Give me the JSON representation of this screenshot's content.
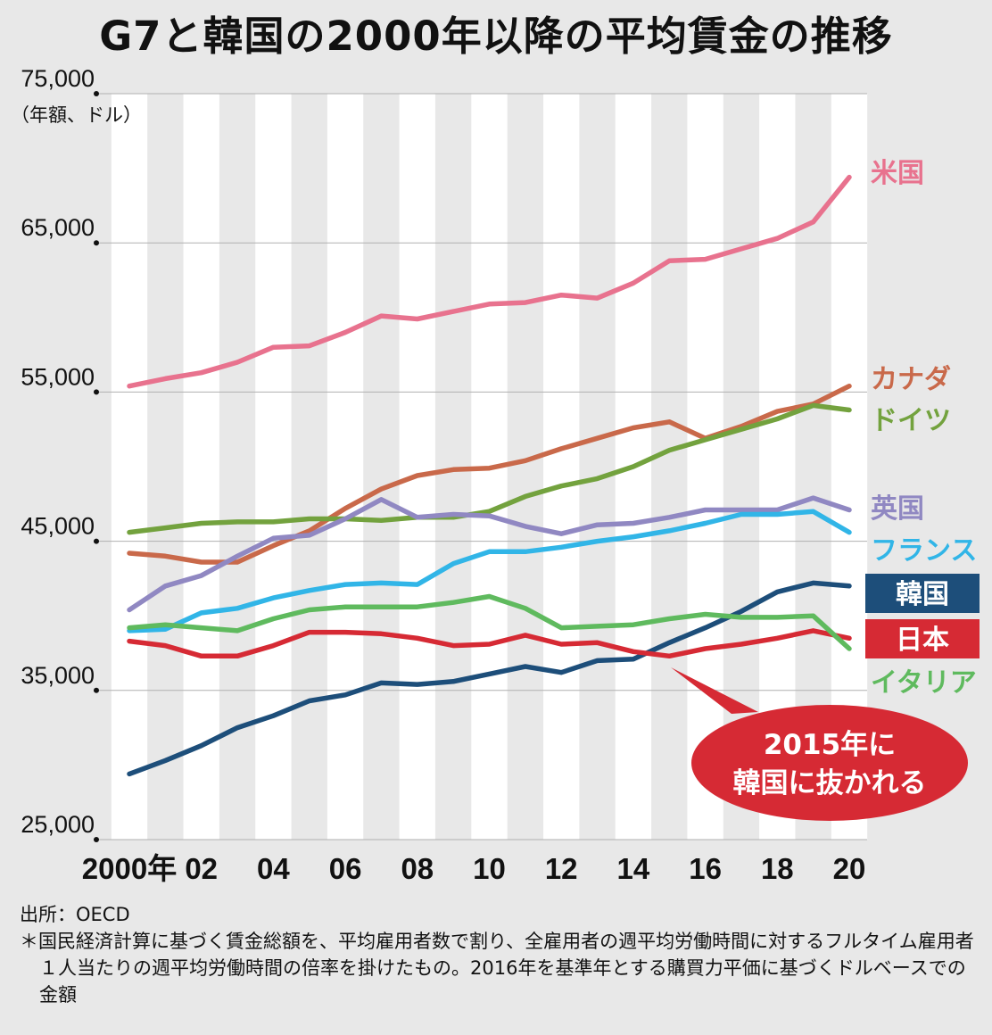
{
  "title": "G7と韓国の2000年以降の平均賃金の推移",
  "chart_data": {
    "type": "line",
    "unit_label": "（年額、ドル）",
    "ylim": [
      25000,
      75000
    ],
    "yticks": [
      25000,
      35000,
      45000,
      55000,
      65000,
      75000
    ],
    "ytick_labels": [
      "25,000",
      "35,000",
      "45,000",
      "55,000",
      "65,000",
      "75,000"
    ],
    "x": [
      2000,
      2001,
      2002,
      2003,
      2004,
      2005,
      2006,
      2007,
      2008,
      2009,
      2010,
      2011,
      2012,
      2013,
      2014,
      2015,
      2016,
      2017,
      2018,
      2019,
      2020
    ],
    "xtick_values": [
      2000,
      2002,
      2004,
      2006,
      2008,
      2010,
      2012,
      2014,
      2016,
      2018,
      2020
    ],
    "xtick_labels": [
      "2000年",
      "02",
      "04",
      "06",
      "08",
      "10",
      "12",
      "14",
      "16",
      "18",
      "20"
    ],
    "grid": "vertical stripes",
    "series": [
      {
        "name": "米国",
        "color": "#e8728e",
        "label_style": "text",
        "values": [
          55400,
          55900,
          56300,
          57000,
          58000,
          58100,
          59000,
          60100,
          59900,
          60400,
          60900,
          61000,
          61500,
          61300,
          62300,
          63800,
          63900,
          64600,
          65300,
          66400,
          69400
        ]
      },
      {
        "name": "カナダ",
        "color": "#c9694a",
        "label_style": "text",
        "values": [
          44200,
          44000,
          43600,
          43600,
          44700,
          45700,
          47200,
          48500,
          49400,
          49800,
          49900,
          50400,
          51200,
          51900,
          52600,
          53000,
          51900,
          52700,
          53700,
          54200,
          55400
        ]
      },
      {
        "name": "ドイツ",
        "color": "#73a23e",
        "label_style": "text",
        "values": [
          45600,
          45900,
          46200,
          46300,
          46300,
          46500,
          46500,
          46400,
          46600,
          46600,
          47000,
          48000,
          48700,
          49200,
          50000,
          51100,
          51800,
          52500,
          53200,
          54100,
          53800
        ]
      },
      {
        "name": "英国",
        "color": "#9088c2",
        "label_style": "text",
        "values": [
          40400,
          42000,
          42700,
          44000,
          45200,
          45400,
          46500,
          47800,
          46600,
          46800,
          46700,
          46000,
          45500,
          46100,
          46200,
          46600,
          47100,
          47100,
          47100,
          47900,
          47100
        ]
      },
      {
        "name": "フランス",
        "color": "#31b5e7",
        "label_style": "text",
        "values": [
          39000,
          39100,
          40200,
          40500,
          41200,
          41700,
          42100,
          42200,
          42100,
          43500,
          44300,
          44300,
          44600,
          45000,
          45300,
          45700,
          46200,
          46800,
          46800,
          47000,
          45600
        ]
      },
      {
        "name": "韓国",
        "color": "#1d4e7a",
        "label_style": "box",
        "values": [
          29400,
          30300,
          31300,
          32500,
          33300,
          34300,
          34700,
          35500,
          35400,
          35600,
          36100,
          36600,
          36200,
          37000,
          37100,
          38200,
          39200,
          40300,
          41600,
          42200,
          42000
        ]
      },
      {
        "name": "日本",
        "color": "#d62a34",
        "label_style": "box",
        "values": [
          38300,
          38000,
          37300,
          37300,
          38000,
          38900,
          38900,
          38800,
          38500,
          38000,
          38100,
          38700,
          38100,
          38200,
          37600,
          37300,
          37800,
          38100,
          38500,
          39000,
          38500
        ]
      },
      {
        "name": "イタリア",
        "color": "#5fba5e",
        "label_style": "text",
        "values": [
          39200,
          39400,
          39200,
          39000,
          39800,
          40400,
          40600,
          40600,
          40600,
          40900,
          41300,
          40500,
          39200,
          39300,
          39400,
          39800,
          40100,
          39900,
          39900,
          40000,
          37800
        ]
      }
    ],
    "annotation": {
      "lines": [
        "2015年に",
        "韓国に抜かれる"
      ],
      "fill": "#d62a34",
      "text_color": "#ffffff"
    }
  },
  "notes": {
    "source": "出所：OECD",
    "footnote": "＊国民経済計算に基づく賃金総額を、平均雇用者数で割り、全雇用者の週平均労働時間に対するフルタイム雇用者１人当たりの週平均労働時間の倍率を掛けたもの。2016年を基準年とする購買力平価に基づくドルベースでの金額"
  }
}
